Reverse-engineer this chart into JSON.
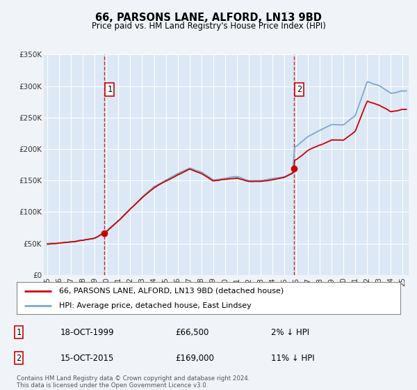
{
  "title": "66, PARSONS LANE, ALFORD, LN13 9BD",
  "subtitle": "Price paid vs. HM Land Registry's House Price Index (HPI)",
  "bg_color": "#f0f4f8",
  "plot_bg_color": "#dce8f5",
  "grid_color": "#ffffff",
  "ylim": [
    0,
    350000
  ],
  "yticks": [
    0,
    50000,
    100000,
    150000,
    200000,
    250000,
    300000,
    350000
  ],
  "ytick_labels": [
    "£0",
    "£50K",
    "£100K",
    "£150K",
    "£200K",
    "£250K",
    "£300K",
    "£350K"
  ],
  "xlim_start": 1994.7,
  "xlim_end": 2025.5,
  "xticks": [
    1995,
    1996,
    1997,
    1998,
    1999,
    2000,
    2001,
    2002,
    2003,
    2004,
    2005,
    2006,
    2007,
    2008,
    2009,
    2010,
    2011,
    2012,
    2013,
    2014,
    2015,
    2016,
    2017,
    2018,
    2019,
    2020,
    2021,
    2022,
    2023,
    2024,
    2025
  ],
  "sale1_date": 1999.8,
  "sale1_price": 66500,
  "sale1_label": "1",
  "sale2_date": 2015.8,
  "sale2_price": 169000,
  "sale2_label": "2",
  "line1_color": "#cc0000",
  "line2_color": "#7aaacc",
  "marker_color": "#cc0000",
  "vline_color": "#cc0000",
  "legend_line1": "66, PARSONS LANE, ALFORD, LN13 9BD (detached house)",
  "legend_line2": "HPI: Average price, detached house, East Lindsey",
  "table_row1": [
    "1",
    "18-OCT-1999",
    "£66,500",
    "2% ↓ HPI"
  ],
  "table_row2": [
    "2",
    "15-OCT-2015",
    "£169,000",
    "11% ↓ HPI"
  ],
  "footer1": "Contains HM Land Registry data © Crown copyright and database right 2024.",
  "footer2": "This data is licensed under the Open Government Licence v3.0."
}
